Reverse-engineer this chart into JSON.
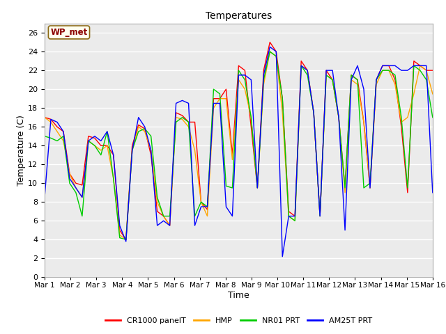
{
  "title": "Temperatures",
  "xlabel": "Time",
  "ylabel": "Temperature (C)",
  "ylim": [
    0,
    27
  ],
  "yticks": [
    0,
    2,
    4,
    6,
    8,
    10,
    12,
    14,
    16,
    18,
    20,
    22,
    24,
    26
  ],
  "x_labels": [
    "Mar 1",
    "Mar 2",
    "Mar 3",
    "Mar 4",
    "Mar 5",
    "Mar 6",
    "Mar 7",
    "Mar 8",
    "Mar 9",
    "Mar 10",
    "Mar 11",
    "Mar 12",
    "Mar 13",
    "Mar 14",
    "Mar 15",
    "Mar 16"
  ],
  "annotation_text": "WP_met",
  "annotation_color": "#8b0000",
  "annotation_bg": "#fffff0",
  "annotation_border": "#8b6914",
  "legend_entries": [
    "CR1000 panelT",
    "HMP",
    "NR01 PRT",
    "AM25T PRT"
  ],
  "legend_colors": [
    "#ff0000",
    "#ffa500",
    "#00cc00",
    "#0000ff"
  ],
  "background_color": "#ffffff",
  "plot_bg_color": "#ebebeb",
  "grid_color": "#ffffff",
  "cr1000": [
    17.0,
    16.8,
    16.0,
    15.5,
    11.0,
    10.0,
    9.8,
    15.0,
    14.8,
    14.0,
    14.0,
    13.0,
    5.0,
    4.0,
    14.0,
    16.2,
    15.8,
    13.0,
    7.0,
    6.5,
    5.5,
    17.5,
    17.2,
    16.5,
    16.5,
    8.0,
    7.2,
    19.0,
    19.0,
    20.0,
    13.0,
    22.5,
    22.0,
    16.0,
    9.5,
    22.0,
    25.0,
    24.0,
    19.0,
    7.0,
    6.5,
    23.0,
    22.0,
    17.5,
    6.5,
    22.0,
    21.0,
    17.0,
    9.5,
    21.5,
    21.0,
    16.5,
    9.5,
    21.0,
    22.5,
    22.5,
    21.0,
    16.0,
    9.0,
    23.0,
    22.5,
    22.0,
    22.0
  ],
  "hmp": [
    17.0,
    16.5,
    15.5,
    14.5,
    11.0,
    9.5,
    8.5,
    14.5,
    14.0,
    13.5,
    14.0,
    10.5,
    4.5,
    4.0,
    13.5,
    16.0,
    15.5,
    13.5,
    8.0,
    6.5,
    5.5,
    17.0,
    16.8,
    16.0,
    13.5,
    8.0,
    6.5,
    18.0,
    19.0,
    19.0,
    12.5,
    21.0,
    20.0,
    17.0,
    9.5,
    20.5,
    24.0,
    23.5,
    17.5,
    6.5,
    6.0,
    22.5,
    22.0,
    17.5,
    6.5,
    21.5,
    21.0,
    17.0,
    9.0,
    21.0,
    20.5,
    16.5,
    9.5,
    20.5,
    22.0,
    22.0,
    20.5,
    16.5,
    17.0,
    19.5,
    22.5,
    22.0,
    19.5
  ],
  "nr01": [
    15.0,
    14.8,
    14.5,
    15.0,
    10.0,
    9.0,
    6.5,
    14.5,
    14.0,
    13.0,
    15.5,
    10.5,
    4.2,
    4.0,
    13.5,
    15.5,
    15.8,
    15.0,
    8.5,
    6.5,
    6.5,
    16.5,
    17.0,
    16.5,
    6.5,
    8.0,
    7.5,
    20.0,
    19.5,
    9.7,
    9.5,
    22.0,
    21.0,
    17.0,
    9.5,
    21.0,
    24.0,
    23.5,
    19.0,
    6.5,
    6.0,
    22.5,
    21.5,
    17.5,
    6.5,
    21.5,
    21.0,
    17.0,
    9.5,
    21.5,
    21.0,
    9.5,
    10.0,
    21.0,
    22.0,
    22.0,
    21.5,
    17.0,
    9.5,
    22.5,
    22.0,
    21.0,
    17.0
  ],
  "am25t": [
    8.5,
    16.8,
    16.5,
    15.5,
    10.5,
    9.5,
    8.5,
    14.5,
    15.0,
    14.5,
    15.5,
    13.0,
    5.5,
    3.8,
    13.5,
    17.0,
    16.0,
    13.5,
    5.5,
    6.0,
    5.5,
    18.5,
    18.8,
    18.5,
    5.5,
    7.5,
    7.5,
    18.5,
    18.5,
    7.5,
    6.5,
    21.5,
    21.5,
    21.0,
    9.5,
    21.5,
    24.5,
    24.0,
    2.2,
    6.5,
    6.5,
    22.5,
    22.0,
    17.5,
    6.5,
    22.0,
    22.0,
    17.0,
    5.0,
    21.0,
    22.5,
    20.0,
    9.5,
    21.0,
    22.5,
    22.5,
    22.5,
    22.0,
    22.0,
    22.5,
    22.5,
    22.5,
    9.0
  ]
}
